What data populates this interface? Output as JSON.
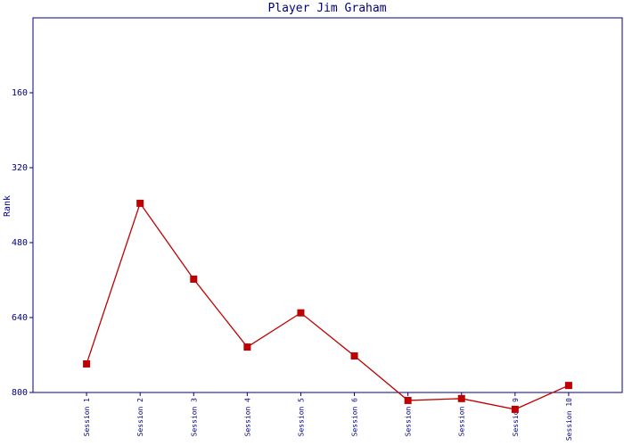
{
  "chart_data": {
    "type": "line",
    "title": "Player Jim Graham",
    "y_label": "Rank",
    "categories": [
      "Session 1",
      "Session 2",
      "Session 3",
      "Session 4",
      "Session 5",
      "Session 6",
      "Session 7",
      "Session 8",
      "Session 9",
      "Session 10"
    ],
    "series": [
      {
        "name": "Rank",
        "color": "#c00000",
        "values": [
          739,
          396,
          558,
          703,
          630,
          722,
          817,
          813,
          836,
          785
        ]
      }
    ],
    "ylim": [
      800,
      0
    ],
    "yticks": [
      160,
      320,
      480,
      640,
      800
    ],
    "grid": false
  }
}
